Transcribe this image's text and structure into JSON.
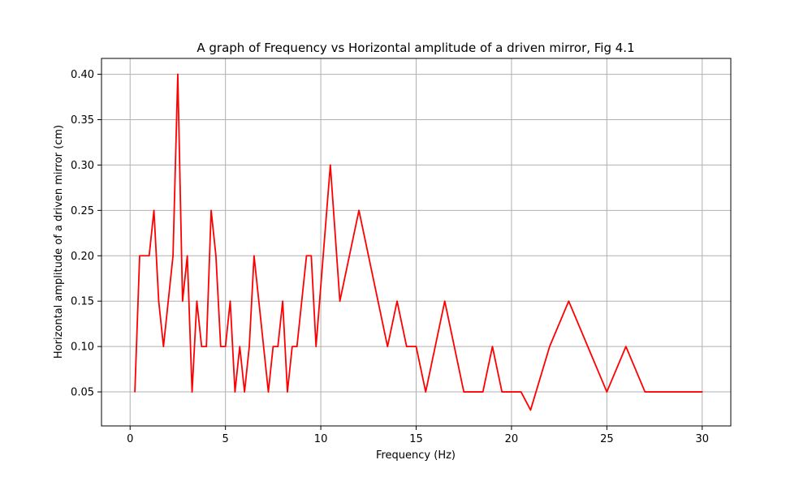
{
  "chart_data": {
    "type": "line",
    "title": "A graph of Frequency vs Horizontal amplitude of a driven mirror, Fig 4.1",
    "xlabel": "Frequency (Hz)",
    "ylabel": "Horizontal amplitude of a driven mirror (cm)",
    "xlim": [
      -1.5,
      31.5
    ],
    "ylim": [
      0.0125,
      0.4175
    ],
    "xticks": [
      0,
      5,
      10,
      15,
      20,
      25,
      30
    ],
    "yticks": [
      0.05,
      0.1,
      0.15,
      0.2,
      0.25,
      0.3,
      0.35,
      0.4
    ],
    "xtick_labels": [
      "0",
      "5",
      "10",
      "15",
      "20",
      "25",
      "30"
    ],
    "ytick_labels": [
      "0.05",
      "0.10",
      "0.15",
      "0.20",
      "0.25",
      "0.30",
      "0.35",
      "0.40"
    ],
    "grid": true,
    "line_color": "#ff0000",
    "grid_color": "#b0b0b0",
    "series": [
      {
        "x": [
          0.25,
          0.5,
          1.0,
          1.25,
          1.5,
          1.75,
          2.25,
          2.5,
          2.75,
          3.0,
          3.25,
          3.5,
          3.75,
          4.0,
          4.25,
          4.5,
          4.75,
          5.0,
          5.25,
          5.5,
          5.75,
          6.0,
          6.25,
          6.5,
          6.75,
          7.25,
          7.5,
          7.75,
          8.0,
          8.25,
          8.5,
          8.75,
          9.25,
          9.5,
          9.75,
          10.5,
          11.0,
          12.0,
          13.5,
          14.0,
          14.5,
          15.0,
          15.5,
          16.5,
          17.5,
          18.5,
          19.0,
          19.5,
          20.5,
          21.0,
          22.0,
          23.0,
          24.0,
          25.0,
          26.0,
          27.0,
          30.0
        ],
        "y": [
          0.05,
          0.2,
          0.2,
          0.25,
          0.15,
          0.1,
          0.2,
          0.4,
          0.15,
          0.2,
          0.05,
          0.15,
          0.1,
          0.1,
          0.25,
          0.2,
          0.1,
          0.1,
          0.15,
          0.05,
          0.1,
          0.05,
          0.1,
          0.2,
          0.15,
          0.05,
          0.1,
          0.1,
          0.15,
          0.05,
          0.1,
          0.1,
          0.2,
          0.2,
          0.1,
          0.3,
          0.15,
          0.25,
          0.1,
          0.15,
          0.1,
          0.1,
          0.05,
          0.15,
          0.05,
          0.05,
          0.1,
          0.05,
          0.05,
          0.03,
          0.1,
          0.15,
          0.1,
          0.05,
          0.1,
          0.05,
          0.05
        ]
      }
    ]
  }
}
